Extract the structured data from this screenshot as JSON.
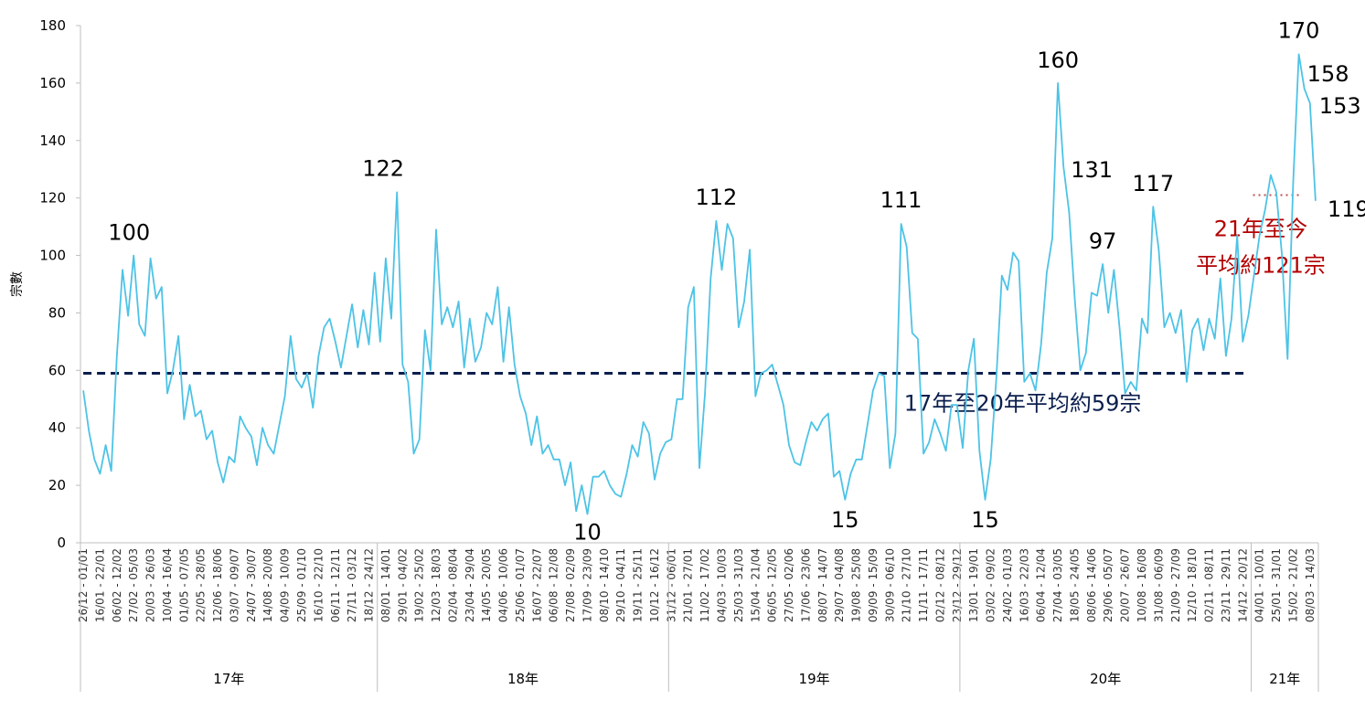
{
  "chart_data": {
    "type": "line",
    "ylabel": "宗數",
    "ylim": [
      0,
      180
    ],
    "yticks": [
      0,
      20,
      40,
      60,
      80,
      100,
      120,
      140,
      160,
      180
    ],
    "grid": false,
    "line_color": "#4dc3e6",
    "x": [
      "26/12 - 01/01",
      "02/01 - 08/01",
      "09/01 - 15/01",
      "16/01 - 22/01",
      "23/01 - 29/01",
      "30/01 - 05/02",
      "06/02 - 12/02",
      "13/02 - 19/02",
      "20/02 - 26/02",
      "27/02 - 05/03",
      "06/03 - 12/03",
      "13/03 - 19/03",
      "20/03 - 26/03",
      "27/03 - 02/04",
      "03/04 - 09/04",
      "10/04 - 16/04",
      "17/04 - 23/04",
      "24/04 - 30/04",
      "01/05 - 07/05",
      "08/05 - 14/05",
      "15/05 - 21/05",
      "22/05 - 28/05",
      "29/05 - 04/06",
      "05/06 - 11/06",
      "12/06 - 18/06",
      "19/06 - 25/06",
      "26/06 - 02/07",
      "03/07 - 09/07",
      "10/07 - 16/07",
      "17/07 - 23/07",
      "24/07 - 30/07",
      "31/07 - 06/08",
      "07/08 - 13/08",
      "14/08 - 20/08",
      "21/08 - 27/08",
      "28/08 - 03/09",
      "04/09 - 10/09",
      "11/09 - 17/09",
      "18/09 - 24/09",
      "25/09 - 01/10",
      "02/10 - 08/10",
      "09/10 - 15/10",
      "16/10 - 22/10",
      "23/10 - 29/10",
      "30/10 - 05/11",
      "06/11 - 12/11",
      "13/11 - 19/11",
      "20/11 - 26/11",
      "27/11 - 03/12",
      "04/12 - 10/12",
      "11/12 - 17/12",
      "18/12 - 24/12",
      "25/12 - 31/12",
      "01/01 - 07/01",
      "08/01 - 14/01",
      "15/01 - 21/01",
      "22/01 - 28/01",
      "29/01 - 04/02",
      "05/02 - 11/02",
      "12/02 - 18/02",
      "19/02 - 25/02",
      "26/02 - 04/03",
      "05/03 - 11/03",
      "12/03 - 18/03",
      "19/03 - 25/03",
      "26/03 - 01/04",
      "02/04 - 08/04",
      "09/04 - 15/04",
      "16/04 - 22/04",
      "23/04 - 29/04",
      "30/04 - 06/05",
      "07/05 - 13/05",
      "14/05 - 20/05",
      "21/05 - 27/05",
      "28/05 - 03/06",
      "04/06 - 10/06",
      "11/06 - 17/06",
      "18/06 - 24/06",
      "25/06 - 01/07",
      "02/07 - 08/07",
      "09/07 - 15/07",
      "16/07 - 22/07",
      "23/07 - 29/07",
      "30/07 - 05/08",
      "06/08 - 12/08",
      "13/08 - 19/08",
      "20/08 - 26/08",
      "27/08 - 02/09",
      "03/09 - 09/09",
      "10/09 - 16/09",
      "17/09 - 23/09",
      "24/09 - 30/09",
      "01/10 - 07/10",
      "08/10 - 14/10",
      "15/10 - 21/10",
      "22/10 - 28/10",
      "29/10 - 04/11",
      "05/11 - 11/11",
      "12/11 - 18/11",
      "19/11 - 25/11",
      "26/11 - 02/12",
      "03/12 - 09/12",
      "10/12 - 16/12",
      "17/12 - 23/12",
      "24/12 - 30/12",
      "31/12 - 06/01",
      "07/01 - 13/01",
      "14/01 - 20/01",
      "21/01 - 27/01",
      "28/01 - 03/02",
      "04/02 - 10/02",
      "11/02 - 17/02",
      "18/02 - 24/02",
      "25/02 - 03/03",
      "04/03 - 10/03",
      "11/03 - 17/03",
      "18/03 - 24/03",
      "25/03 - 31/03",
      "01/04 - 07/04",
      "08/04 - 14/04",
      "15/04 - 21/04",
      "22/04 - 28/04",
      "29/04 - 05/05",
      "06/05 - 12/05",
      "13/05 - 19/05",
      "20/05 - 26/05",
      "27/05 - 02/06",
      "03/06 - 09/06",
      "10/06 - 16/06",
      "17/06 - 23/06",
      "24/06 - 30/06",
      "01/07 - 07/07",
      "08/07 - 14/07",
      "15/07 - 21/07",
      "22/07 - 28/07",
      "29/07 - 04/08",
      "05/08 - 11/08",
      "12/08 - 18/08",
      "19/08 - 25/08",
      "26/08 - 01/09",
      "02/09 - 08/09",
      "09/09 - 15/09",
      "16/09 - 22/09",
      "23/09 - 29/09",
      "30/09 - 06/10",
      "07/10 - 13/10",
      "14/10 - 20/10",
      "21/10 - 27/10",
      "28/10 - 03/11",
      "04/11 - 10/11",
      "11/11 - 17/11",
      "18/11 - 24/11",
      "25/11 - 01/12",
      "02/12 - 08/12",
      "09/12 - 15/12",
      "16/12 - 22/12",
      "23/12 - 29/12",
      "30/12 - 05/01",
      "06/01 - 12/01",
      "13/01 - 19/01",
      "20/01 - 26/01",
      "27/01 - 02/02",
      "03/02 - 09/02",
      "10/02 - 16/02",
      "17/02 - 23/02",
      "24/02 - 01/03",
      "02/03 - 08/03",
      "09/03 - 15/03",
      "16/03 - 22/03",
      "23/03 - 29/03",
      "30/03 - 05/04",
      "06/04 - 12/04",
      "13/04 - 19/04",
      "20/04 - 26/04",
      "27/04 - 03/05",
      "04/05 - 10/05",
      "11/05 - 17/05",
      "18/05 - 24/05",
      "25/05 - 31/05",
      "01/06 - 07/06",
      "08/06 - 14/06",
      "15/06 - 21/06",
      "22/06 - 28/06",
      "29/06 - 05/07",
      "06/07 - 12/07",
      "13/07 - 19/07",
      "20/07 - 26/07",
      "27/07 - 02/08",
      "03/08 - 09/08",
      "10/08 - 16/08",
      "17/08 - 23/08",
      "24/08 - 30/08",
      "31/08 - 06/09",
      "07/09 - 13/09",
      "14/09 - 20/09",
      "21/09 - 27/09",
      "28/09 - 04/10",
      "05/10 - 11/10",
      "12/10 - 18/10",
      "19/10 - 25/10",
      "26/10 - 01/11",
      "02/11 - 08/11",
      "09/11 - 15/11",
      "16/11 - 22/11",
      "23/11 - 29/11",
      "30/11 - 06/12",
      "07/12 - 13/12",
      "14/12 - 20/12",
      "21/12 - 27/12",
      "28/12 - 03/01",
      "04/01 - 10/01",
      "11/01 - 17/01",
      "18/01 - 24/01",
      "25/01 - 31/01",
      "01/02 - 07/02",
      "08/02 - 14/02",
      "15/02 - 21/02",
      "22/02 - 28/02",
      "01/03 - 07/03",
      "08/03 - 14/03",
      "15/03 - 21/03"
    ],
    "tick_every": 3,
    "series": [
      {
        "values": [
          53,
          39,
          29,
          24,
          34,
          25,
          65,
          95,
          79,
          100,
          76,
          72,
          99,
          85,
          89,
          52,
          60,
          72,
          43,
          55,
          44,
          46,
          36,
          39,
          28,
          21,
          30,
          28,
          44,
          40,
          37,
          27,
          40,
          34,
          31,
          41,
          51,
          72,
          57,
          54,
          59,
          47,
          65,
          75,
          78,
          70,
          61,
          72,
          83,
          68,
          81,
          69,
          94,
          70,
          99,
          78,
          122,
          62,
          56,
          31,
          36,
          74,
          60,
          109,
          76,
          82,
          75,
          84,
          61,
          78,
          63,
          68,
          80,
          76,
          89,
          63,
          82,
          62,
          51,
          45,
          34,
          44,
          31,
          34,
          29,
          29,
          20,
          28,
          11,
          20,
          10,
          23,
          23,
          25,
          20,
          17,
          16,
          24,
          34,
          30,
          42,
          38,
          22,
          31,
          35,
          36,
          50,
          50,
          82,
          89,
          26,
          52,
          92,
          112,
          95,
          111,
          106,
          75,
          84,
          102,
          51,
          59,
          60,
          62,
          55,
          48,
          34,
          28,
          27,
          35,
          42,
          39,
          43,
          45,
          23,
          25,
          15,
          24,
          29,
          29,
          41,
          53,
          59,
          58,
          26,
          38,
          111,
          103,
          73,
          71,
          31,
          35,
          43,
          38,
          32,
          48,
          48,
          33,
          60,
          71,
          32,
          15,
          29,
          57,
          93,
          88,
          101,
          98,
          56,
          59,
          53,
          69,
          94,
          106,
          160,
          131,
          115,
          85,
          60,
          66,
          87,
          86,
          97,
          80,
          95,
          75,
          52,
          56,
          53,
          78,
          73,
          117,
          102,
          75,
          80,
          73,
          81,
          56,
          74,
          78,
          67,
          78,
          71,
          92,
          65,
          78,
          107,
          70,
          79,
          93,
          107,
          116,
          128,
          122,
          100,
          64,
          125,
          170,
          158,
          153,
          119
        ]
      }
    ],
    "year_groups": [
      {
        "label": "17年",
        "start": 0,
        "end": 52
      },
      {
        "label": "18年",
        "start": 53,
        "end": 104
      },
      {
        "label": "19年",
        "start": 105,
        "end": 156
      },
      {
        "label": "20年",
        "start": 157,
        "end": 208
      },
      {
        "label": "21年",
        "start": 209,
        "end": 220
      }
    ],
    "reference_lines": [
      {
        "value": 59,
        "start": 0,
        "end": 208,
        "color": "#0b1f4d",
        "style": "dashed",
        "label": "17年至20年平均約59宗"
      },
      {
        "value": 121,
        "start": 209,
        "end": 216,
        "color": "#c0504d",
        "style": "dotted",
        "label_line1": "21年至今",
        "label_line2": "平均約121宗"
      }
    ],
    "annotations": [
      {
        "index": 9,
        "value": 100,
        "text": "100"
      },
      {
        "index": 56,
        "value": 122,
        "text": "122"
      },
      {
        "index": 90,
        "value": 10,
        "text": "10"
      },
      {
        "index": 113,
        "value": 112,
        "text": "112"
      },
      {
        "index": 136,
        "value": 15,
        "text": "15"
      },
      {
        "index": 146,
        "value": 111,
        "text": "111"
      },
      {
        "index": 161,
        "value": 15,
        "text": "15"
      },
      {
        "index": 174,
        "value": 160,
        "text": "160"
      },
      {
        "index": 175,
        "value": 131,
        "text": "131"
      },
      {
        "index": 182,
        "value": 97,
        "text": "97"
      },
      {
        "index": 191,
        "value": 117,
        "text": "117"
      },
      {
        "index": 217,
        "value": 170,
        "text": "170"
      },
      {
        "index": 218,
        "value": 158,
        "text": "158"
      },
      {
        "index": 219,
        "value": 153,
        "text": "153"
      },
      {
        "index": 220,
        "value": 119,
        "text": "119"
      }
    ]
  }
}
